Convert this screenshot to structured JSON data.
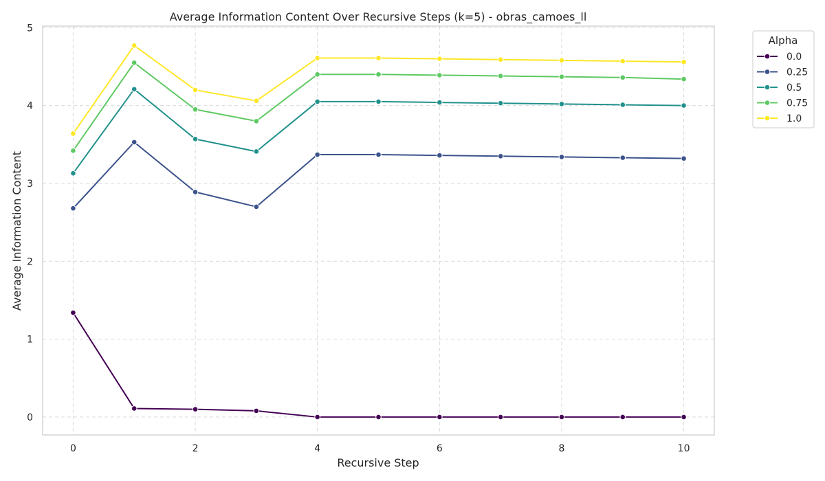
{
  "chart_data": {
    "type": "line",
    "title": "Average Information Content Over Recursive Steps (k=5) - obras_camoes_ll",
    "xlabel": "Recursive Step",
    "ylabel": "Average Information Content",
    "xlim": [
      -0.5,
      10.5
    ],
    "ylim": [
      -0.23,
      5.02
    ],
    "xticks": [
      0,
      2,
      4,
      6,
      8,
      10
    ],
    "yticks": [
      0,
      1,
      2,
      3,
      4,
      5
    ],
    "grid": true,
    "legend": {
      "title": "Alpha",
      "placement": "outside-top-right"
    },
    "x": [
      0,
      1,
      2,
      3,
      4,
      5,
      6,
      7,
      8,
      9,
      10
    ],
    "series": [
      {
        "name": "0.0",
        "color": "#440154",
        "values": [
          1.34,
          0.11,
          0.1,
          0.08,
          0.0,
          0.0,
          0.0,
          0.0,
          0.0,
          0.0,
          0.0
        ]
      },
      {
        "name": "0.25",
        "color": "#3b528b",
        "values": [
          2.68,
          3.53,
          2.89,
          2.7,
          3.37,
          3.37,
          3.36,
          3.35,
          3.34,
          3.33,
          3.32
        ]
      },
      {
        "name": "0.5",
        "color": "#21918c",
        "values": [
          3.13,
          4.21,
          3.57,
          3.41,
          4.05,
          4.05,
          4.04,
          4.03,
          4.02,
          4.01,
          4.0
        ]
      },
      {
        "name": "0.75",
        "color": "#5ec962",
        "values": [
          3.42,
          4.55,
          3.95,
          3.8,
          4.4,
          4.4,
          4.39,
          4.38,
          4.37,
          4.36,
          4.34
        ]
      },
      {
        "name": "1.0",
        "color": "#fde725",
        "values": [
          3.64,
          4.77,
          4.2,
          4.06,
          4.61,
          4.61,
          4.6,
          4.59,
          4.58,
          4.57,
          4.56
        ]
      }
    ]
  }
}
